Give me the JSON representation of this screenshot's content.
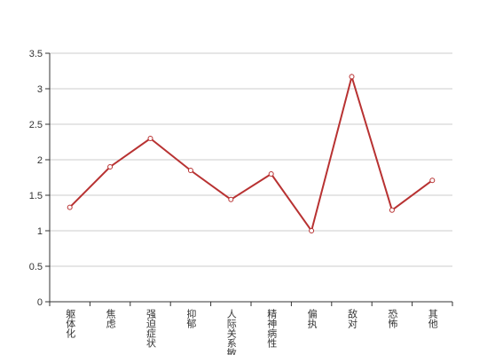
{
  "chart_data": {
    "type": "line",
    "categories": [
      "躯体化",
      "焦虑",
      "强迫症状",
      "抑郁",
      "人际关系敏感",
      "精神病性",
      "偏执",
      "敌对",
      "恐怖",
      "其他"
    ],
    "series": [
      {
        "name": null,
        "color": "#b83232",
        "values": [
          1.33,
          1.9,
          2.3,
          1.85,
          1.44,
          1.8,
          1.0,
          3.17,
          1.29,
          1.71
        ]
      }
    ],
    "ylim": [
      0,
      3.5
    ],
    "yticks": [
      0,
      0.5,
      1,
      1.5,
      2,
      2.5,
      3,
      3.5
    ],
    "grid": true
  }
}
